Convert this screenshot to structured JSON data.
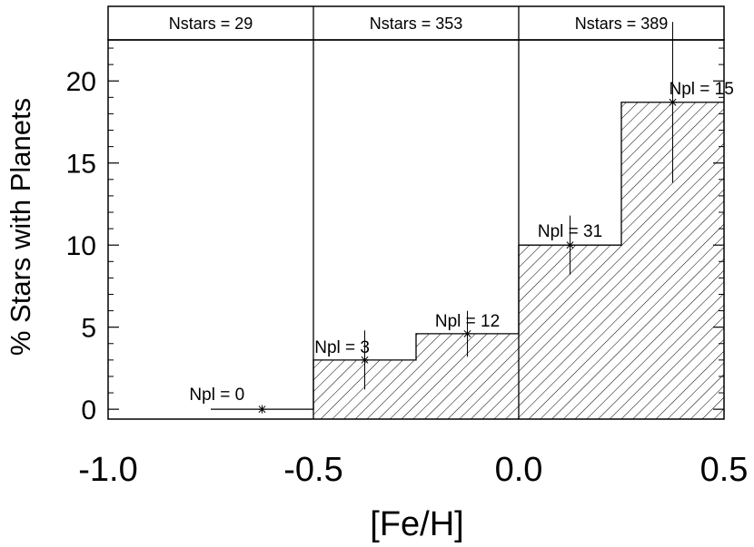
{
  "chart_data": {
    "type": "bar",
    "xlabel": "[Fe/H]",
    "ylabel": "% Stars with Planets",
    "xlim": [
      -1.0,
      0.5
    ],
    "ylim": [
      -0.6,
      22.5
    ],
    "x_ticks": [
      -1.0,
      -0.5,
      0.0,
      0.5
    ],
    "x_tick_labels": [
      "-1.0",
      "-0.5",
      "0.0",
      "0.5"
    ],
    "y_ticks": [
      0,
      5,
      10,
      15,
      20
    ],
    "y_tick_labels": [
      "0",
      "5",
      "10",
      "15",
      "20"
    ],
    "grid": false,
    "bins": [
      {
        "x0": -0.75,
        "x1": -0.5,
        "center": -0.625,
        "value": 0.0,
        "err_low": 0.0,
        "err_high": 0.0,
        "label": "Npl = 0",
        "hatched": false
      },
      {
        "x0": -0.5,
        "x1": -0.25,
        "center": -0.375,
        "value": 3.0,
        "err_low": 1.8,
        "err_high": 1.8,
        "label": "Npl = 3",
        "hatched": true
      },
      {
        "x0": -0.25,
        "x1": 0.0,
        "center": -0.125,
        "value": 4.6,
        "err_low": 1.4,
        "err_high": 1.4,
        "label": "Npl = 12",
        "hatched": true
      },
      {
        "x0": 0.0,
        "x1": 0.25,
        "center": 0.125,
        "value": 10.0,
        "err_low": 1.8,
        "err_high": 1.8,
        "label": "Npl = 31",
        "hatched": true
      },
      {
        "x0": 0.25,
        "x1": 0.5,
        "center": 0.375,
        "value": 18.7,
        "err_low": 4.9,
        "err_high": 4.9,
        "label": "Npl = 15",
        "hatched": true
      }
    ],
    "panels": [
      {
        "x0": -1.0,
        "x1": -0.5,
        "label": "Nstars = 29"
      },
      {
        "x0": -0.5,
        "x1": 0.0,
        "label": "Nstars = 353"
      },
      {
        "x0": 0.0,
        "x1": 0.5,
        "label": "Nstars = 389"
      }
    ]
  }
}
